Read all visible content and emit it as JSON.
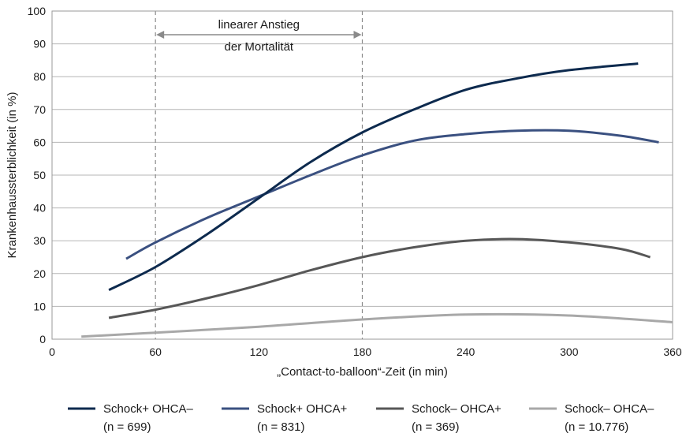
{
  "chart_data": {
    "type": "line",
    "title": "",
    "xlabel": "„Contact-to-balloon“-Zeit (in min)",
    "ylabel": "Krankenhaussterblichkeit (in %)",
    "xlim": [
      0,
      360
    ],
    "ylim": [
      0,
      100
    ],
    "xticks": [
      0,
      60,
      120,
      180,
      240,
      300,
      360
    ],
    "yticks": [
      0,
      10,
      20,
      30,
      40,
      50,
      60,
      70,
      80,
      90,
      100
    ],
    "grid": "horizontal",
    "legend_position": "bottom",
    "annotation": {
      "line1": "linearer Anstieg",
      "line2": "der Mortalität",
      "from_x": 60,
      "to_x": 180
    },
    "series": [
      {
        "name": "Schock+ OHCA–",
        "n_label": "(n = 699)",
        "color": "#0d2a4e",
        "x": [
          33,
          60,
          90,
          120,
          150,
          180,
          210,
          240,
          270,
          300,
          340
        ],
        "y": [
          15,
          22,
          32,
          43,
          54,
          63,
          70,
          76,
          79.5,
          82,
          84
        ]
      },
      {
        "name": "Schock+ OHCA+",
        "n_label": "(n = 831)",
        "color": "#3a5080",
        "x": [
          43,
          60,
          90,
          120,
          150,
          180,
          210,
          240,
          270,
          300,
          330,
          352
        ],
        "y": [
          24.5,
          29.5,
          37,
          43.5,
          50,
          56,
          60.5,
          62.5,
          63.5,
          63.5,
          62,
          60
        ]
      },
      {
        "name": "Schock– OHCA+",
        "n_label": "(n = 369)",
        "color": "#575757",
        "x": [
          33,
          60,
          90,
          120,
          150,
          180,
          210,
          240,
          270,
          300,
          330,
          347
        ],
        "y": [
          6.5,
          9,
          12.5,
          16.5,
          21,
          25,
          28,
          30,
          30.5,
          29.5,
          27.5,
          25
        ]
      },
      {
        "name": "Schock– OHCA–",
        "n_label": "(n = 10.776)",
        "color": "#a8a8a8",
        "x": [
          17,
          60,
          120,
          180,
          240,
          300,
          360
        ],
        "y": [
          0.8,
          2,
          3.8,
          6,
          7.5,
          7.2,
          5.2
        ]
      }
    ]
  }
}
